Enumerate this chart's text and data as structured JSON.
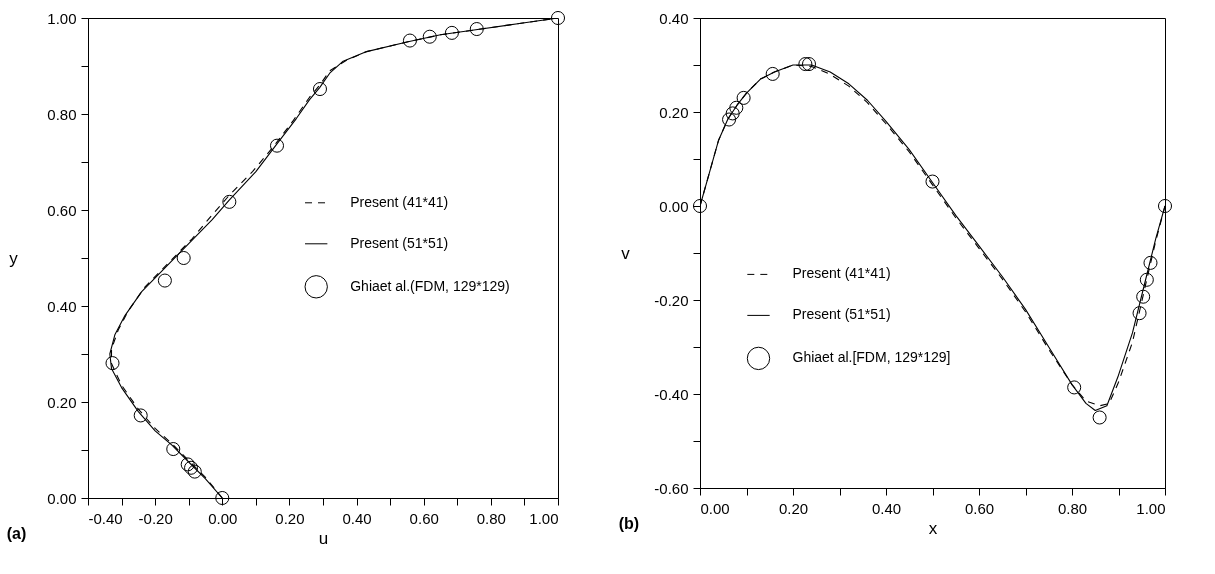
{
  "chart_data": [
    {
      "type": "line",
      "xlabel": "u",
      "ylabel": "y",
      "annotations": [
        "(a)"
      ],
      "legend": "right",
      "grid": false,
      "xlim": [
        -0.4,
        1.0
      ],
      "ylim": [
        0,
        1
      ],
      "xticks": [
        {
          "value": -0.4,
          "label": "-0.40"
        },
        {
          "value": -0.3,
          "label": null
        },
        {
          "value": -0.2,
          "label": "-0.20"
        },
        {
          "value": -0.1,
          "label": null
        },
        {
          "value": 0,
          "label": "0.00"
        },
        {
          "value": 0.1,
          "label": null
        },
        {
          "value": 0.2,
          "label": "0.20"
        },
        {
          "value": 0.3,
          "label": null
        },
        {
          "value": 0.4,
          "label": "0.40"
        },
        {
          "value": 0.5,
          "label": null
        },
        {
          "value": 0.6,
          "label": "0.60"
        },
        {
          "value": 0.7,
          "label": null
        },
        {
          "value": 0.8,
          "label": "0.80"
        },
        {
          "value": 0.9,
          "label": null
        },
        {
          "value": 1.0,
          "label": "1.00"
        }
      ],
      "yticks": [
        {
          "value": 0,
          "label": "0.00"
        },
        {
          "value": 0.1,
          "label": null
        },
        {
          "value": 0.2,
          "label": "0.20"
        },
        {
          "value": 0.3,
          "label": null
        },
        {
          "value": 0.4,
          "label": "0.40"
        },
        {
          "value": 0.5,
          "label": null
        },
        {
          "value": 0.6,
          "label": "0.60"
        },
        {
          "value": 0.7,
          "label": null
        },
        {
          "value": 0.8,
          "label": "0.80"
        },
        {
          "value": 0.9,
          "label": null
        },
        {
          "value": 1.0,
          "label": "1.00"
        }
      ],
      "series": [
        {
          "name": "Present (41*41)",
          "type": "line",
          "color": "#000000",
          "line_style": "dashed",
          "x": [
            0,
            -0.05,
            -0.1,
            -0.15,
            -0.2,
            -0.25,
            -0.3,
            -0.33,
            -0.33,
            -0.31,
            -0.28,
            -0.23,
            -0.16,
            -0.09,
            -0.03,
            0.02,
            0.09,
            0.15,
            0.21,
            0.26,
            0.29,
            0.32,
            0.37,
            0.43,
            0.55,
            0.65,
            0.75,
            0.88,
            1
          ],
          "values": [
            0,
            0.043,
            0.078,
            0.113,
            0.145,
            0.185,
            0.235,
            0.28,
            0.31,
            0.35,
            0.39,
            0.44,
            0.49,
            0.54,
            0.59,
            0.63,
            0.68,
            0.73,
            0.785,
            0.835,
            0.86,
            0.89,
            0.912,
            0.93,
            0.95,
            0.965,
            0.975,
            0.988,
            1
          ]
        },
        {
          "name": "Present (51*51)",
          "type": "line",
          "color": "#000000",
          "line_style": "solid",
          "x": [
            0,
            -0.05,
            -0.1,
            -0.15,
            -0.2,
            -0.25,
            -0.3,
            -0.33,
            -0.335,
            -0.32,
            -0.29,
            -0.24,
            -0.17,
            -0.1,
            -0.03,
            0.02,
            0.1,
            0.16,
            0.22,
            0.26,
            0.29,
            0.32,
            0.36,
            0.43,
            0.55,
            0.65,
            0.75,
            0.88,
            1
          ],
          "values": [
            0,
            0.04,
            0.075,
            0.11,
            0.14,
            0.18,
            0.23,
            0.27,
            0.3,
            0.34,
            0.38,
            0.43,
            0.48,
            0.53,
            0.58,
            0.62,
            0.68,
            0.735,
            0.79,
            0.83,
            0.855,
            0.885,
            0.91,
            0.93,
            0.95,
            0.965,
            0.975,
            0.988,
            1
          ]
        },
        {
          "name": "Ghiaet al.(FDM, 129*129)",
          "type": "scatter",
          "color": "#000000",
          "marker": "circle",
          "x": [
            1,
            0.758,
            0.684,
            0.618,
            0.559,
            0.291,
            0.163,
            0.021,
            -0.115,
            -0.171,
            -0.327,
            -0.243,
            -0.146,
            -0.103,
            -0.093,
            -0.082,
            0
          ],
          "values": [
            1,
            0.977,
            0.969,
            0.961,
            0.953,
            0.852,
            0.734,
            0.617,
            0.5,
            0.453,
            0.281,
            0.172,
            0.102,
            0.07,
            0.063,
            0.055,
            0
          ]
        }
      ]
    },
    {
      "type": "line",
      "xlabel": "x",
      "ylabel": "v",
      "annotations": [
        "(b)"
      ],
      "legend": "left",
      "grid": false,
      "xlim": [
        0,
        1
      ],
      "ylim": [
        -0.6,
        0.4
      ],
      "xticks": [
        {
          "value": 0,
          "label": "0.00"
        },
        {
          "value": 0.1,
          "label": null
        },
        {
          "value": 0.2,
          "label": "0.20"
        },
        {
          "value": 0.3,
          "label": null
        },
        {
          "value": 0.4,
          "label": "0.40"
        },
        {
          "value": 0.5,
          "label": null
        },
        {
          "value": 0.6,
          "label": "0.60"
        },
        {
          "value": 0.7,
          "label": null
        },
        {
          "value": 0.8,
          "label": "0.80"
        },
        {
          "value": 0.9,
          "label": null
        },
        {
          "value": 1.0,
          "label": "1.00"
        }
      ],
      "yticks": [
        {
          "value": -0.6,
          "label": "-0.60"
        },
        {
          "value": -0.5,
          "label": null
        },
        {
          "value": -0.4,
          "label": "-0.40"
        },
        {
          "value": -0.3,
          "label": null
        },
        {
          "value": -0.2,
          "label": "-0.20"
        },
        {
          "value": -0.1,
          "label": null
        },
        {
          "value": 0,
          "label": "0.00"
        },
        {
          "value": 0.1,
          "label": null
        },
        {
          "value": 0.2,
          "label": "0.20"
        },
        {
          "value": 0.3,
          "label": null
        },
        {
          "value": 0.4,
          "label": "0.40"
        }
      ],
      "series": [
        {
          "name": "Present (41*41)",
          "type": "line",
          "color": "#000000",
          "line_style": "dashed",
          "x": [
            0,
            0.02,
            0.04,
            0.06,
            0.08,
            0.1,
            0.13,
            0.16,
            0.2,
            0.24,
            0.28,
            0.32,
            0.36,
            0.4,
            0.45,
            0.5,
            0.55,
            0.6,
            0.65,
            0.7,
            0.75,
            0.8,
            0.83,
            0.86,
            0.88,
            0.9,
            0.93,
            0.96,
            0.98,
            1
          ],
          "values": [
            0,
            0.07,
            0.14,
            0.185,
            0.215,
            0.24,
            0.27,
            0.285,
            0.3,
            0.297,
            0.28,
            0.255,
            0.22,
            0.175,
            0.115,
            0.045,
            -0.025,
            -0.09,
            -0.155,
            -0.225,
            -0.305,
            -0.38,
            -0.415,
            -0.425,
            -0.42,
            -0.375,
            -0.29,
            -0.16,
            -0.075,
            0
          ]
        },
        {
          "name": "Present (51*51)",
          "type": "line",
          "color": "#000000",
          "line_style": "solid",
          "x": [
            0,
            0.02,
            0.04,
            0.06,
            0.08,
            0.1,
            0.13,
            0.16,
            0.2,
            0.24,
            0.28,
            0.32,
            0.36,
            0.4,
            0.45,
            0.5,
            0.55,
            0.6,
            0.65,
            0.7,
            0.75,
            0.8,
            0.83,
            0.85,
            0.875,
            0.9,
            0.93,
            0.96,
            0.98,
            1
          ],
          "values": [
            0,
            0.07,
            0.14,
            0.185,
            0.215,
            0.24,
            0.27,
            0.285,
            0.3,
            0.3,
            0.285,
            0.26,
            0.225,
            0.18,
            0.12,
            0.05,
            -0.02,
            -0.085,
            -0.15,
            -0.22,
            -0.3,
            -0.38,
            -0.42,
            -0.435,
            -0.425,
            -0.36,
            -0.27,
            -0.15,
            -0.07,
            0
          ]
        },
        {
          "name": "Ghiaet al.[FDM, 129*129]",
          "type": "scatter",
          "color": "#000000",
          "marker": "circle",
          "x": [
            0,
            0.0625,
            0.0703,
            0.0781,
            0.0938,
            0.1563,
            0.2266,
            0.2344,
            0.5,
            0.8047,
            0.8594,
            0.9453,
            0.9531,
            0.9609,
            0.9688,
            1
          ],
          "values": [
            0,
            0.184,
            0.197,
            0.209,
            0.23,
            0.281,
            0.302,
            0.302,
            0.052,
            -0.386,
            -0.45,
            -0.228,
            -0.193,
            -0.157,
            -0.121,
            0
          ]
        }
      ]
    }
  ]
}
